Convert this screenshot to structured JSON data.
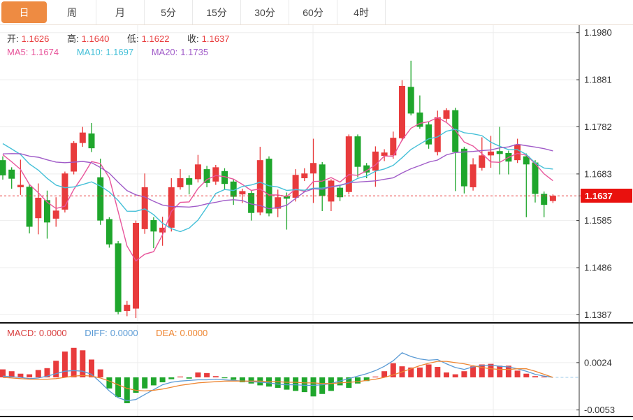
{
  "tabs": [
    {
      "name": "tab-day",
      "label": "日",
      "active": true
    },
    {
      "name": "tab-week",
      "label": "周",
      "active": false
    },
    {
      "name": "tab-month",
      "label": "月",
      "active": false
    },
    {
      "name": "tab-5min",
      "label": "5分",
      "active": false
    },
    {
      "name": "tab-15min",
      "label": "15分",
      "active": false
    },
    {
      "name": "tab-30min",
      "label": "30分",
      "active": false
    },
    {
      "name": "tab-60min",
      "label": "60分",
      "active": false
    },
    {
      "name": "tab-4hour",
      "label": "4时",
      "active": false
    }
  ],
  "legend": {
    "open_label": "开:",
    "open": "1.1626",
    "high_label": "高:",
    "high": "1.1640",
    "low_label": "低:",
    "low": "1.1622",
    "close_label": "收:",
    "close": "1.1637",
    "ma5_label": "MA5:",
    "ma5": "1.1674",
    "ma10_label": "MA10:",
    "ma10": "1.1697",
    "ma20_label": "MA20:",
    "ma20": "1.1735"
  },
  "macd_legend": {
    "macd_label": "MACD:",
    "macd": "0.0000",
    "diff_label": "DIFF:",
    "diff": "0.0000",
    "dea_label": "DEA:",
    "dea": "0.0000"
  },
  "axis": {
    "main_ticks": [
      "1.1980",
      "1.1881",
      "1.1782",
      "1.1683",
      "1.1585",
      "1.1486",
      "1.1387"
    ],
    "main_tick_prices": [
      1.198,
      1.1881,
      1.1782,
      1.1683,
      1.1585,
      1.1486,
      1.1387
    ],
    "macd_ticks": [
      "0.0024",
      "-0.0053"
    ],
    "macd_tick_values": [
      0.0024,
      -0.0053
    ],
    "last_price": "1.1637",
    "last_price_value": 1.1637
  },
  "colors": {
    "up": "#E83B3C",
    "down": "#1FA62C",
    "ma5": "#E8559B",
    "ma10": "#45C0D8",
    "ma20": "#A05BC8",
    "diff": "#5B9BD5",
    "dea": "#EE8632",
    "macd_label": "#D94040",
    "tab_active_bg": "#EE8B42",
    "last_price_bg": "#E9110E",
    "dashed_line": "#E83B3C",
    "zero_dash": "#9CCBEA",
    "grid": "#ededed",
    "axis_line": "#333",
    "label_text": "#333"
  },
  "chart_data": [
    {
      "type": "candlestick",
      "title": "daily price panel",
      "note": "CN convention: red = up candle, green = down candle",
      "ylim": [
        1.1387,
        1.198
      ],
      "y_ticks": [
        1.198,
        1.1881,
        1.1782,
        1.1683,
        1.1585,
        1.1486,
        1.1387
      ],
      "last_close": 1.1637,
      "ma_latest": {
        "ma5": 1.1674,
        "ma10": 1.1697,
        "ma20": 1.1735
      },
      "ma_prehistory": [
        1.166,
        1.1665,
        1.1672,
        1.168,
        1.169,
        1.17,
        1.1712,
        1.1725,
        1.174,
        1.179,
        1.1785,
        1.1778,
        1.177,
        1.1762,
        1.1755,
        1.1748,
        1.174,
        1.173,
        1.172
      ],
      "columns": [
        "open",
        "high",
        "low",
        "close"
      ],
      "candles": [
        [
          1.1712,
          1.172,
          1.1671,
          1.168
        ],
        [
          1.1692,
          1.1697,
          1.1652,
          1.1673
        ],
        [
          1.1655,
          1.1713,
          1.1639,
          1.166
        ],
        [
          1.1656,
          1.1661,
          1.1558,
          1.1572
        ],
        [
          1.159,
          1.1663,
          1.1556,
          1.1633
        ],
        [
          1.1628,
          1.1648,
          1.1547,
          1.1581
        ],
        [
          1.1589,
          1.1634,
          1.1572,
          1.1606
        ],
        [
          1.1608,
          1.1688,
          1.1602,
          1.1684
        ],
        [
          1.1688,
          1.1752,
          1.1682,
          1.1748
        ],
        [
          1.1748,
          1.1782,
          1.174,
          1.177
        ],
        [
          1.1768,
          1.179,
          1.1729,
          1.1737
        ],
        [
          1.1676,
          1.1715,
          1.1576,
          1.1585
        ],
        [
          1.1588,
          1.1592,
          1.1528,
          1.1535
        ],
        [
          1.1537,
          1.1542,
          1.1388,
          1.1393
        ],
        [
          1.1395,
          1.1416,
          1.1384,
          1.1408
        ],
        [
          1.14,
          1.1585,
          1.138,
          1.158
        ],
        [
          1.1567,
          1.1684,
          1.1557,
          1.1655
        ],
        [
          1.1586,
          1.1592,
          1.1527,
          1.1562
        ],
        [
          1.156,
          1.1593,
          1.1532,
          1.157
        ],
        [
          1.157,
          1.1674,
          1.1562,
          1.1655
        ],
        [
          1.1655,
          1.1693,
          1.165,
          1.1674
        ],
        [
          1.1674,
          1.168,
          1.164,
          1.166
        ],
        [
          1.1672,
          1.1723,
          1.1665,
          1.1703
        ],
        [
          1.1693,
          1.17,
          1.1655,
          1.1664
        ],
        [
          1.1667,
          1.1702,
          1.166,
          1.1697
        ],
        [
          1.1689,
          1.1695,
          1.165,
          1.1662
        ],
        [
          1.1667,
          1.1672,
          1.1618,
          1.1635
        ],
        [
          1.164,
          1.1652,
          1.1622,
          1.1647
        ],
        [
          1.1643,
          1.1648,
          1.1585,
          1.1601
        ],
        [
          1.1602,
          1.174,
          1.1596,
          1.1712
        ],
        [
          1.1715,
          1.172,
          1.1594,
          1.16
        ],
        [
          1.161,
          1.165,
          1.1592,
          1.1634
        ],
        [
          1.1636,
          1.1644,
          1.1566,
          1.1631
        ],
        [
          1.1633,
          1.1693,
          1.1625,
          1.1681
        ],
        [
          1.1674,
          1.1695,
          1.1668,
          1.1684
        ],
        [
          1.1684,
          1.1757,
          1.1622,
          1.1706
        ],
        [
          1.1703,
          1.1708,
          1.1605,
          1.1637
        ],
        [
          1.1625,
          1.1672,
          1.1605,
          1.1669
        ],
        [
          1.1654,
          1.1658,
          1.1626,
          1.1634
        ],
        [
          1.1645,
          1.1766,
          1.164,
          1.1762
        ],
        [
          1.1762,
          1.1766,
          1.1676,
          1.1698
        ],
        [
          1.1701,
          1.1706,
          1.1674,
          1.1686
        ],
        [
          1.169,
          1.1741,
          1.1656,
          1.173
        ],
        [
          1.1721,
          1.1735,
          1.171,
          1.1728
        ],
        [
          1.1722,
          1.1772,
          1.1715,
          1.1759
        ],
        [
          1.1758,
          1.188,
          1.1752,
          1.1868
        ],
        [
          1.1866,
          1.1921,
          1.1806,
          1.181
        ],
        [
          1.1812,
          1.1848,
          1.1778,
          1.1782
        ],
        [
          1.1787,
          1.1792,
          1.1736,
          1.1745
        ],
        [
          1.1729,
          1.1816,
          1.1722,
          1.1802
        ],
        [
          1.1799,
          1.1821,
          1.1793,
          1.1817
        ],
        [
          1.1817,
          1.1822,
          1.1647,
          1.1729
        ],
        [
          1.1736,
          1.174,
          1.1642,
          1.1657
        ],
        [
          1.1655,
          1.1716,
          1.1648,
          1.1703
        ],
        [
          1.1696,
          1.176,
          1.169,
          1.1722
        ],
        [
          1.1722,
          1.1763,
          1.1696,
          1.173
        ],
        [
          1.1731,
          1.1782,
          1.1682,
          1.1725
        ],
        [
          1.1727,
          1.1732,
          1.1682,
          1.1709
        ],
        [
          1.1712,
          1.1757,
          1.1706,
          1.1745
        ],
        [
          1.172,
          1.1726,
          1.1592,
          1.1703
        ],
        [
          1.1707,
          1.1712,
          1.1623,
          1.1641
        ],
        [
          1.1641,
          1.1646,
          1.1592,
          1.1618
        ],
        [
          1.1626,
          1.164,
          1.1622,
          1.1637
        ]
      ]
    },
    {
      "type": "bar",
      "title": "MACD panel",
      "ylabel": "MACD",
      "y_ticks": [
        0.0024,
        -0.0053
      ],
      "histogram": [
        0.0013,
        0.001,
        0.0006,
        0.0005,
        0.0012,
        0.0015,
        0.0027,
        0.0042,
        0.0048,
        0.0044,
        0.0029,
        0.0013,
        -0.0018,
        -0.0032,
        -0.0042,
        -0.0025,
        -0.0018,
        -0.0013,
        -0.0008,
        -0.0003,
        0.0001,
        -0.0002,
        0.0008,
        0.0007,
        0.0002,
        -0.0001,
        -0.0004,
        -0.0008,
        -0.001,
        -0.0013,
        -0.0015,
        -0.0017,
        -0.002,
        -0.0022,
        -0.0024,
        -0.0031,
        -0.0027,
        -0.0022,
        -0.0013,
        -0.0017,
        -0.001,
        -0.0006,
        0.0001,
        0.001,
        0.0023,
        0.0018,
        0.0016,
        0.0016,
        0.0021,
        0.0017,
        0.0008,
        0.0005,
        0.001,
        0.0018,
        0.0021,
        0.0022,
        0.0019,
        0.0019,
        0.0011,
        0.0006,
        0.0002,
        0.0001,
        0.0
      ],
      "series": [
        {
          "name": "DIFF",
          "values": [
            0.0002,
            0.0001,
            0.0,
            -0.0002,
            -0.0001,
            0.0002,
            0.0006,
            0.001,
            0.0011,
            0.001,
            0.0005,
            -0.0008,
            -0.0022,
            -0.0033,
            -0.0038,
            -0.0036,
            -0.0028,
            -0.002,
            -0.0012,
            -0.0008,
            -0.0006,
            -0.0005,
            -0.0004,
            -0.0004,
            -0.0003,
            -0.0004,
            -0.0005,
            -0.0006,
            -0.0007,
            -0.0008,
            -0.0009,
            -0.0011,
            -0.0012,
            -0.0012,
            -0.0013,
            -0.0013,
            -0.0012,
            -0.001,
            -0.0006,
            -0.0002,
            0.0002,
            0.0006,
            0.0011,
            0.0018,
            0.0027,
            0.004,
            0.0034,
            0.003,
            0.0028,
            0.0029,
            0.0022,
            0.0016,
            0.0013,
            0.0017,
            0.0019,
            0.002,
            0.0018,
            0.0017,
            0.0014,
            0.001,
            0.0005,
            0.0002,
            0.0
          ]
        },
        {
          "name": "DEA",
          "values": [
            0.0,
            -0.0001,
            -0.0002,
            -0.0003,
            -0.0003,
            -0.0003,
            -0.0002,
            0.0,
            0.0002,
            0.0003,
            0.0002,
            -0.0001,
            -0.0006,
            -0.0012,
            -0.0018,
            -0.0021,
            -0.0022,
            -0.0021,
            -0.0019,
            -0.0016,
            -0.0013,
            -0.0011,
            -0.0009,
            -0.0008,
            -0.0007,
            -0.0006,
            -0.0006,
            -0.0006,
            -0.0006,
            -0.0006,
            -0.0007,
            -0.0007,
            -0.0008,
            -0.0008,
            -0.0009,
            -0.0009,
            -0.001,
            -0.001,
            -0.0009,
            -0.0008,
            -0.0007,
            -0.0005,
            -0.0003,
            0.0,
            0.0004,
            0.0009,
            0.0014,
            0.0019,
            0.0023,
            0.0026,
            0.0026,
            0.0024,
            0.0022,
            0.0019,
            0.0016,
            0.0014,
            0.0013,
            0.0013,
            0.0014,
            0.0014,
            0.001,
            0.0005,
            0.0
          ]
        }
      ]
    }
  ]
}
